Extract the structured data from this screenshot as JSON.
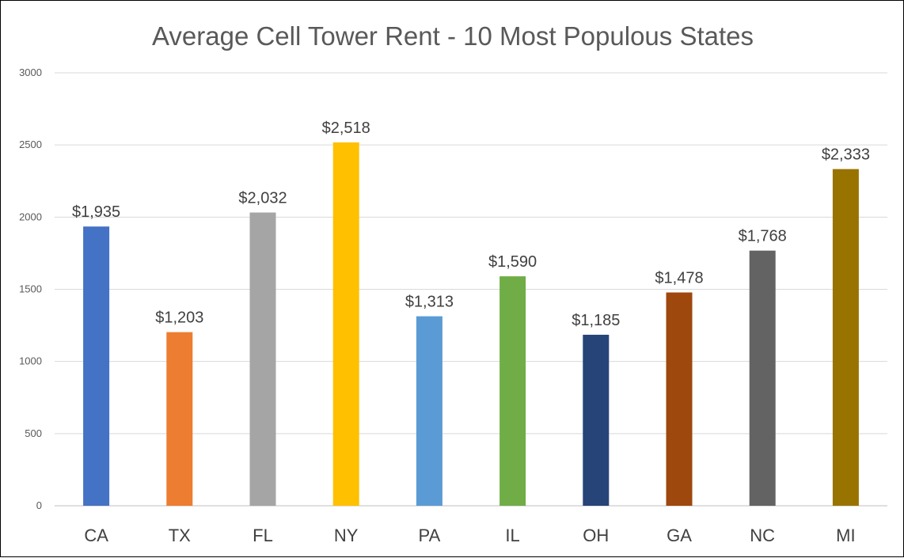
{
  "chart_data": {
    "type": "bar",
    "title": "Average Cell Tower Rent - 10 Most Populous States",
    "categories": [
      "CA",
      "TX",
      "FL",
      "NY",
      "PA",
      "IL",
      "OH",
      "GA",
      "NC",
      "MI"
    ],
    "values": [
      1935,
      1203,
      2032,
      2518,
      1313,
      1590,
      1185,
      1478,
      1768,
      2333
    ],
    "data_labels": [
      "$1,935",
      "$1,203",
      "$2,032",
      "$2,518",
      "$1,313",
      "$1,590",
      "$1,185",
      "$1,478",
      "$1,768",
      "$2,333"
    ],
    "colors": [
      "#4472C4",
      "#ED7D31",
      "#A5A5A5",
      "#FFC000",
      "#5B9BD5",
      "#70AD47",
      "#264478",
      "#9E480E",
      "#636363",
      "#997300"
    ],
    "yticks": [
      "0",
      "500",
      "1000",
      "1500",
      "2000",
      "2500",
      "3000"
    ],
    "ylim": [
      0,
      3000
    ],
    "grid": true,
    "legend": "none",
    "xlabel": "",
    "ylabel": ""
  }
}
